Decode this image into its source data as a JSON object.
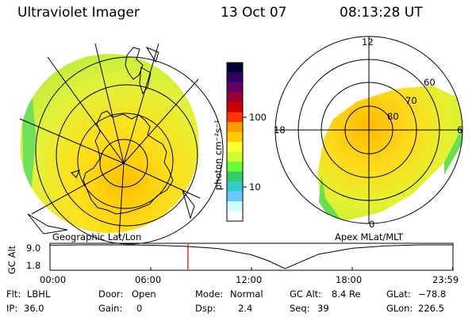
{
  "header": {
    "title": "Ultraviolet Imager",
    "date": "13 Oct 07",
    "time": "08:13:28 UT"
  },
  "colorbar": {
    "unit_label": "photon cm⁻²s⁻¹",
    "tick_100": "100",
    "tick_10": "10",
    "colors": [
      "#000033",
      "#330066",
      "#660066",
      "#990033",
      "#cc0000",
      "#ff3300",
      "#ff9900",
      "#ffcc00",
      "#ffff33",
      "#ccff33",
      "#66ff33",
      "#33cc66",
      "#33cccc",
      "#66ccff",
      "#ccffff",
      "#ffffff"
    ]
  },
  "left_map": {
    "caption": "Geographic Lat/Lon",
    "coastline": "Antarctica"
  },
  "right_map": {
    "caption": "Apex MLat/MLT",
    "mlt_labels": {
      "top": "12",
      "left": "18",
      "right": "6",
      "bottom": "0"
    },
    "lat_labels": {
      "l60": "60",
      "l70": "70",
      "l80": "80"
    }
  },
  "altitude_plot": {
    "ylabel": "GC Alt",
    "ytick_top": "9.0",
    "ytick_bottom": "1.8",
    "xticks": [
      "00:00",
      "06:00",
      "12:00",
      "18:00",
      "23:59"
    ],
    "current_time_marker": "08:13",
    "orbit_curve": {
      "t_hours": [
        0,
        2,
        4,
        6,
        8,
        10,
        12,
        13,
        14,
        15,
        16,
        18,
        20,
        22,
        23.98
      ],
      "alt_re": [
        8.9,
        9.0,
        9.0,
        8.9,
        8.6,
        7.9,
        6.0,
        4.2,
        1.8,
        4.0,
        6.2,
        8.0,
        8.7,
        9.0,
        9.0
      ]
    }
  },
  "status": {
    "flt_label": "Flt:",
    "flt_value": "LBHL",
    "ip_label": "IP:",
    "ip_value": "36.0",
    "door_label": "Door:",
    "door_value": "Open",
    "gain_label": "Gain:",
    "gain_value": "0",
    "mode_label": "Mode:",
    "mode_value": "Normal",
    "dsp_label": "Dsp:",
    "dsp_value": "2.4",
    "gcalt_label": "GC Alt:",
    "gcalt_value": "8.4 Re",
    "seq_label": "Seq:",
    "seq_value": "39",
    "glat_label": "GLat:",
    "glat_value": "−78.8",
    "glon_label": "GLon:",
    "glon_value": "226.5"
  }
}
